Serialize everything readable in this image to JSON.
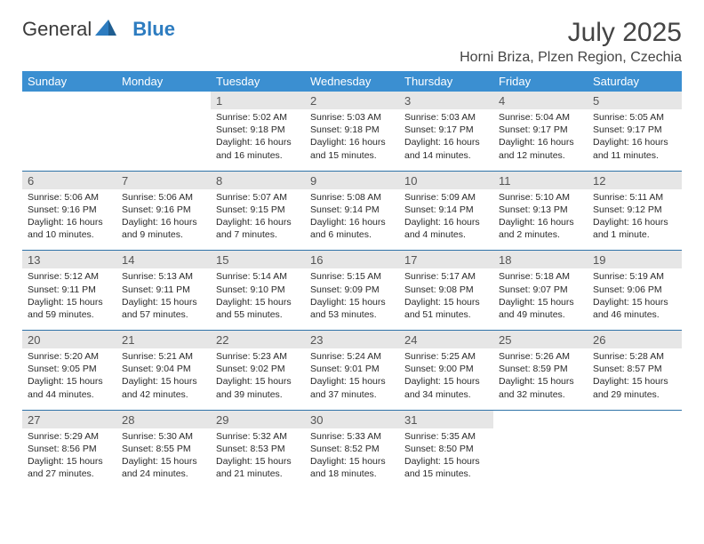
{
  "brand": {
    "part1": "General",
    "part2": "Blue"
  },
  "title": "July 2025",
  "location": "Horni Briza, Plzen Region, Czechia",
  "colors": {
    "header_bg": "#3b8fd1",
    "header_text": "#ffffff",
    "daynum_bg": "#e6e6e6",
    "row_border": "#2f73a8",
    "brand_blue": "#2d7cc0"
  },
  "weekdays": [
    "Sunday",
    "Monday",
    "Tuesday",
    "Wednesday",
    "Thursday",
    "Friday",
    "Saturday"
  ],
  "weeks": [
    [
      {
        "n": "",
        "sr": "",
        "ss": "",
        "dl": "",
        "empty": true
      },
      {
        "n": "",
        "sr": "",
        "ss": "",
        "dl": "",
        "empty": true
      },
      {
        "n": "1",
        "sr": "Sunrise: 5:02 AM",
        "ss": "Sunset: 9:18 PM",
        "dl": "Daylight: 16 hours and 16 minutes."
      },
      {
        "n": "2",
        "sr": "Sunrise: 5:03 AM",
        "ss": "Sunset: 9:18 PM",
        "dl": "Daylight: 16 hours and 15 minutes."
      },
      {
        "n": "3",
        "sr": "Sunrise: 5:03 AM",
        "ss": "Sunset: 9:17 PM",
        "dl": "Daylight: 16 hours and 14 minutes."
      },
      {
        "n": "4",
        "sr": "Sunrise: 5:04 AM",
        "ss": "Sunset: 9:17 PM",
        "dl": "Daylight: 16 hours and 12 minutes."
      },
      {
        "n": "5",
        "sr": "Sunrise: 5:05 AM",
        "ss": "Sunset: 9:17 PM",
        "dl": "Daylight: 16 hours and 11 minutes."
      }
    ],
    [
      {
        "n": "6",
        "sr": "Sunrise: 5:06 AM",
        "ss": "Sunset: 9:16 PM",
        "dl": "Daylight: 16 hours and 10 minutes."
      },
      {
        "n": "7",
        "sr": "Sunrise: 5:06 AM",
        "ss": "Sunset: 9:16 PM",
        "dl": "Daylight: 16 hours and 9 minutes."
      },
      {
        "n": "8",
        "sr": "Sunrise: 5:07 AM",
        "ss": "Sunset: 9:15 PM",
        "dl": "Daylight: 16 hours and 7 minutes."
      },
      {
        "n": "9",
        "sr": "Sunrise: 5:08 AM",
        "ss": "Sunset: 9:14 PM",
        "dl": "Daylight: 16 hours and 6 minutes."
      },
      {
        "n": "10",
        "sr": "Sunrise: 5:09 AM",
        "ss": "Sunset: 9:14 PM",
        "dl": "Daylight: 16 hours and 4 minutes."
      },
      {
        "n": "11",
        "sr": "Sunrise: 5:10 AM",
        "ss": "Sunset: 9:13 PM",
        "dl": "Daylight: 16 hours and 2 minutes."
      },
      {
        "n": "12",
        "sr": "Sunrise: 5:11 AM",
        "ss": "Sunset: 9:12 PM",
        "dl": "Daylight: 16 hours and 1 minute."
      }
    ],
    [
      {
        "n": "13",
        "sr": "Sunrise: 5:12 AM",
        "ss": "Sunset: 9:11 PM",
        "dl": "Daylight: 15 hours and 59 minutes."
      },
      {
        "n": "14",
        "sr": "Sunrise: 5:13 AM",
        "ss": "Sunset: 9:11 PM",
        "dl": "Daylight: 15 hours and 57 minutes."
      },
      {
        "n": "15",
        "sr": "Sunrise: 5:14 AM",
        "ss": "Sunset: 9:10 PM",
        "dl": "Daylight: 15 hours and 55 minutes."
      },
      {
        "n": "16",
        "sr": "Sunrise: 5:15 AM",
        "ss": "Sunset: 9:09 PM",
        "dl": "Daylight: 15 hours and 53 minutes."
      },
      {
        "n": "17",
        "sr": "Sunrise: 5:17 AM",
        "ss": "Sunset: 9:08 PM",
        "dl": "Daylight: 15 hours and 51 minutes."
      },
      {
        "n": "18",
        "sr": "Sunrise: 5:18 AM",
        "ss": "Sunset: 9:07 PM",
        "dl": "Daylight: 15 hours and 49 minutes."
      },
      {
        "n": "19",
        "sr": "Sunrise: 5:19 AM",
        "ss": "Sunset: 9:06 PM",
        "dl": "Daylight: 15 hours and 46 minutes."
      }
    ],
    [
      {
        "n": "20",
        "sr": "Sunrise: 5:20 AM",
        "ss": "Sunset: 9:05 PM",
        "dl": "Daylight: 15 hours and 44 minutes."
      },
      {
        "n": "21",
        "sr": "Sunrise: 5:21 AM",
        "ss": "Sunset: 9:04 PM",
        "dl": "Daylight: 15 hours and 42 minutes."
      },
      {
        "n": "22",
        "sr": "Sunrise: 5:23 AM",
        "ss": "Sunset: 9:02 PM",
        "dl": "Daylight: 15 hours and 39 minutes."
      },
      {
        "n": "23",
        "sr": "Sunrise: 5:24 AM",
        "ss": "Sunset: 9:01 PM",
        "dl": "Daylight: 15 hours and 37 minutes."
      },
      {
        "n": "24",
        "sr": "Sunrise: 5:25 AM",
        "ss": "Sunset: 9:00 PM",
        "dl": "Daylight: 15 hours and 34 minutes."
      },
      {
        "n": "25",
        "sr": "Sunrise: 5:26 AM",
        "ss": "Sunset: 8:59 PM",
        "dl": "Daylight: 15 hours and 32 minutes."
      },
      {
        "n": "26",
        "sr": "Sunrise: 5:28 AM",
        "ss": "Sunset: 8:57 PM",
        "dl": "Daylight: 15 hours and 29 minutes."
      }
    ],
    [
      {
        "n": "27",
        "sr": "Sunrise: 5:29 AM",
        "ss": "Sunset: 8:56 PM",
        "dl": "Daylight: 15 hours and 27 minutes."
      },
      {
        "n": "28",
        "sr": "Sunrise: 5:30 AM",
        "ss": "Sunset: 8:55 PM",
        "dl": "Daylight: 15 hours and 24 minutes."
      },
      {
        "n": "29",
        "sr": "Sunrise: 5:32 AM",
        "ss": "Sunset: 8:53 PM",
        "dl": "Daylight: 15 hours and 21 minutes."
      },
      {
        "n": "30",
        "sr": "Sunrise: 5:33 AM",
        "ss": "Sunset: 8:52 PM",
        "dl": "Daylight: 15 hours and 18 minutes."
      },
      {
        "n": "31",
        "sr": "Sunrise: 5:35 AM",
        "ss": "Sunset: 8:50 PM",
        "dl": "Daylight: 15 hours and 15 minutes."
      },
      {
        "n": "",
        "sr": "",
        "ss": "",
        "dl": "",
        "empty": true
      },
      {
        "n": "",
        "sr": "",
        "ss": "",
        "dl": "",
        "empty": true
      }
    ]
  ]
}
